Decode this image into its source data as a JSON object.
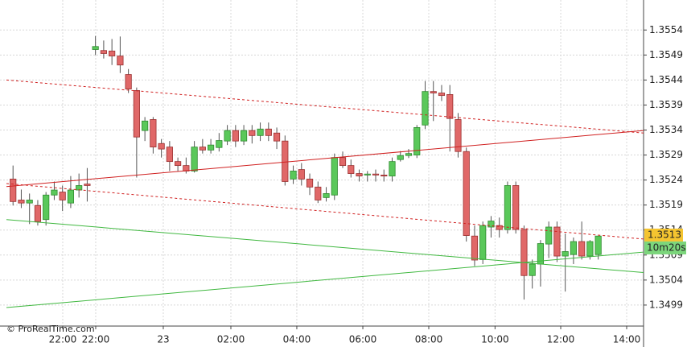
{
  "chart_data": {
    "type": "candlestick",
    "open": [
      1.35242,
      1.352,
      1.35194,
      1.35189,
      1.35161,
      1.3521,
      1.35216,
      1.35194,
      1.3522,
      1.35232,
      1.35501,
      1.35499,
      1.35498,
      1.35488,
      1.35451,
      1.35419,
      1.35339,
      1.35361,
      1.35313,
      1.35306,
      1.35277,
      1.35269,
      1.35258,
      1.35306,
      1.353,
      1.35305,
      1.35318,
      1.35339,
      1.35318,
      1.35339,
      1.35329,
      1.35342,
      1.35334,
      1.35318,
      1.35242,
      1.35261,
      1.35242,
      1.35226,
      1.35205,
      1.3521,
      1.35285,
      1.35269,
      1.35253,
      1.3525,
      1.35252,
      1.3525,
      1.35248,
      1.35281,
      1.35289,
      1.3529,
      1.3535,
      1.35417,
      1.35414,
      1.35411,
      1.35361,
      1.35297,
      1.35128,
      1.35081,
      1.35146,
      1.35149,
      1.35141,
      1.35229,
      1.35141,
      1.35049,
      1.35072,
      1.35112,
      1.35146,
      1.35088,
      1.35091,
      1.35117,
      1.35088,
      1.35091
    ],
    "high": [
      1.35269,
      1.35221,
      1.35213,
      1.352,
      1.35216,
      1.35237,
      1.35229,
      1.35248,
      1.35253,
      1.35264,
      1.35528,
      1.35519,
      1.35522,
      1.35527,
      1.35462,
      1.35425,
      1.35366,
      1.35366,
      1.35322,
      1.35318,
      1.35285,
      1.35285,
      1.35318,
      1.35322,
      1.35322,
      1.35334,
      1.3535,
      1.3535,
      1.3535,
      1.3535,
      1.35355,
      1.35355,
      1.35345,
      1.35329,
      1.35269,
      1.35274,
      1.35253,
      1.35237,
      1.35226,
      1.35293,
      1.35297,
      1.35281,
      1.35261,
      1.35258,
      1.35261,
      1.35261,
      1.35285,
      1.35298,
      1.35302,
      1.3535,
      1.35438,
      1.35438,
      1.3543,
      1.3543,
      1.35374,
      1.35305,
      1.35149,
      1.35157,
      1.35168,
      1.35165,
      1.35237,
      1.35237,
      1.35149,
      1.35081,
      1.3512,
      1.35157,
      1.35157,
      1.35133,
      1.35125,
      1.35157,
      1.3512,
      1.35128
    ],
    "low": [
      1.35189,
      1.35184,
      1.35152,
      1.35149,
      1.35149,
      1.352,
      1.35178,
      1.35184,
      1.35205,
      1.35197,
      1.3549,
      1.35483,
      1.3547,
      1.35454,
      1.35414,
      1.35245,
      1.35318,
      1.35293,
      1.35285,
      1.35258,
      1.35258,
      1.35253,
      1.35255,
      1.35293,
      1.35293,
      1.35297,
      1.3531,
      1.35306,
      1.3531,
      1.35313,
      1.35318,
      1.35318,
      1.35302,
      1.35229,
      1.35232,
      1.35229,
      1.3521,
      1.35194,
      1.35197,
      1.352,
      1.35264,
      1.35245,
      1.35237,
      1.35237,
      1.35237,
      1.35237,
      1.35237,
      1.35277,
      1.35284,
      1.35284,
      1.35342,
      1.35358,
      1.35398,
      1.35297,
      1.35285,
      1.35117,
      1.35068,
      1.35072,
      1.35125,
      1.35125,
      1.35133,
      1.35133,
      1.35001,
      1.35023,
      1.35027,
      1.35084,
      1.35076,
      1.35017,
      1.35072,
      1.35081,
      1.35081,
      1.35081
    ],
    "close": [
      1.35197,
      1.35194,
      1.352,
      1.35157,
      1.3521,
      1.3522,
      1.352,
      1.3522,
      1.35229,
      1.35229,
      1.35507,
      1.35493,
      1.35488,
      1.3547,
      1.35422,
      1.35326,
      1.35358,
      1.35306,
      1.35302,
      1.35277,
      1.35269,
      1.35258,
      1.35306,
      1.353,
      1.3531,
      1.35319,
      1.35339,
      1.35318,
      1.35339,
      1.35329,
      1.35342,
      1.35329,
      1.35318,
      1.35237,
      1.35258,
      1.35242,
      1.35226,
      1.352,
      1.35213,
      1.35285,
      1.35269,
      1.35253,
      1.35248,
      1.35252,
      1.3525,
      1.35248,
      1.35277,
      1.35289,
      1.35293,
      1.35345,
      1.35417,
      1.35414,
      1.35409,
      1.35363,
      1.35297,
      1.35129,
      1.3508,
      1.35149,
      1.35158,
      1.35141,
      1.35229,
      1.35141,
      1.35049,
      1.35072,
      1.35113,
      1.35146,
      1.35088,
      1.35097,
      1.35117,
      1.35088,
      1.35117,
      1.35128
    ],
    "up_color": "#5ac85a",
    "down_color": "#e06868",
    "ylim": [
      1.34948,
      1.356
    ],
    "yticks": [
      1.3499,
      1.3504,
      1.3509,
      1.3514,
      1.3519,
      1.3524,
      1.3529,
      1.3534,
      1.3539,
      1.3544,
      1.3549,
      1.3554
    ],
    "xlim": [
      -0.8,
      76.5
    ],
    "xticks": [
      {
        "value": 6.03,
        "label": "22:00"
      },
      {
        "value": 10.03,
        "label": "22:00"
      },
      {
        "value": 18.23,
        "label": "23"
      },
      {
        "value": 26.43,
        "label": "02:00"
      },
      {
        "value": 34.43,
        "label": "04:00"
      },
      {
        "value": 42.44,
        "label": "06:00"
      },
      {
        "value": 50.44,
        "label": "08:00"
      },
      {
        "value": 58.48,
        "label": "10:00"
      },
      {
        "value": 66.45,
        "label": "12:00"
      },
      {
        "value": 74.45,
        "label": "14:00"
      }
    ],
    "grid": true,
    "overlays": [
      {
        "color": "#d02020",
        "dashed": false,
        "x": [
          -0.8,
          76.5
        ],
        "y": [
          1.35227,
          1.35339
        ]
      },
      {
        "color": "#d02020",
        "dashed": true,
        "x": [
          -0.8,
          76.5
        ],
        "y": [
          1.3544,
          1.35334
        ]
      },
      {
        "color": "#d02020",
        "dashed": true,
        "x": [
          -0.8,
          76.5
        ],
        "y": [
          1.35233,
          1.35122
        ]
      },
      {
        "color": "#40b840",
        "dashed": false,
        "x": [
          -0.8,
          76.5
        ],
        "y": [
          1.35161,
          1.35055
        ]
      },
      {
        "color": "#40b840",
        "dashed": false,
        "x": [
          -0.8,
          76.5
        ],
        "y": [
          1.34985,
          1.35096
        ]
      }
    ],
    "last_price": 1.3513,
    "last_price_color": "#f4c430",
    "timer": "10m20s",
    "timer_color": "#7cd67c",
    "watermark": "© ProRealTime.com"
  }
}
